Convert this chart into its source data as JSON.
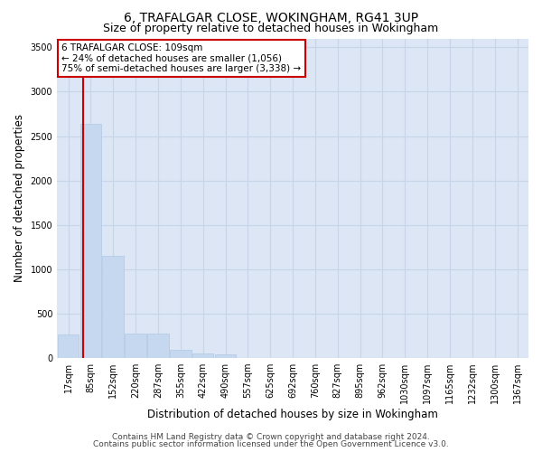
{
  "title_line1": "6, TRAFALGAR CLOSE, WOKINGHAM, RG41 3UP",
  "title_line2": "Size of property relative to detached houses in Wokingham",
  "xlabel": "Distribution of detached houses by size in Wokingham",
  "ylabel": "Number of detached properties",
  "bar_color": "#c5d8f0",
  "bar_edge_color": "#a8c4e0",
  "grid_color": "#c8d4e8",
  "background_color": "#dce6f5",
  "annotation_line1": "6 TRAFALGAR CLOSE: 109sqm",
  "annotation_line2": "← 24% of detached houses are smaller (1,056)",
  "annotation_line3": "75% of semi-detached houses are larger (3,338) →",
  "vline_color": "#cc0000",
  "vline_x": 1.15,
  "annotation_box_color": "#cc0000",
  "footer_line1": "Contains HM Land Registry data © Crown copyright and database right 2024.",
  "footer_line2": "Contains public sector information licensed under the Open Government Licence v3.0.",
  "bin_labels": [
    "17sqm",
    "85sqm",
    "152sqm",
    "220sqm",
    "287sqm",
    "355sqm",
    "422sqm",
    "490sqm",
    "557sqm",
    "625sqm",
    "692sqm",
    "760sqm",
    "827sqm",
    "895sqm",
    "962sqm",
    "1030sqm",
    "1097sqm",
    "1165sqm",
    "1232sqm",
    "1300sqm",
    "1367sqm"
  ],
  "bar_heights": [
    270,
    2640,
    1150,
    280,
    280,
    90,
    55,
    40,
    0,
    0,
    0,
    0,
    0,
    0,
    0,
    0,
    0,
    0,
    0,
    0,
    0
  ],
  "ylim": [
    0,
    3600
  ],
  "yticks": [
    0,
    500,
    1000,
    1500,
    2000,
    2500,
    3000,
    3500
  ],
  "title_fontsize": 10,
  "subtitle_fontsize": 9,
  "axis_label_fontsize": 8.5,
  "tick_fontsize": 7,
  "annotation_fontsize": 7.5,
  "footer_fontsize": 6.5
}
